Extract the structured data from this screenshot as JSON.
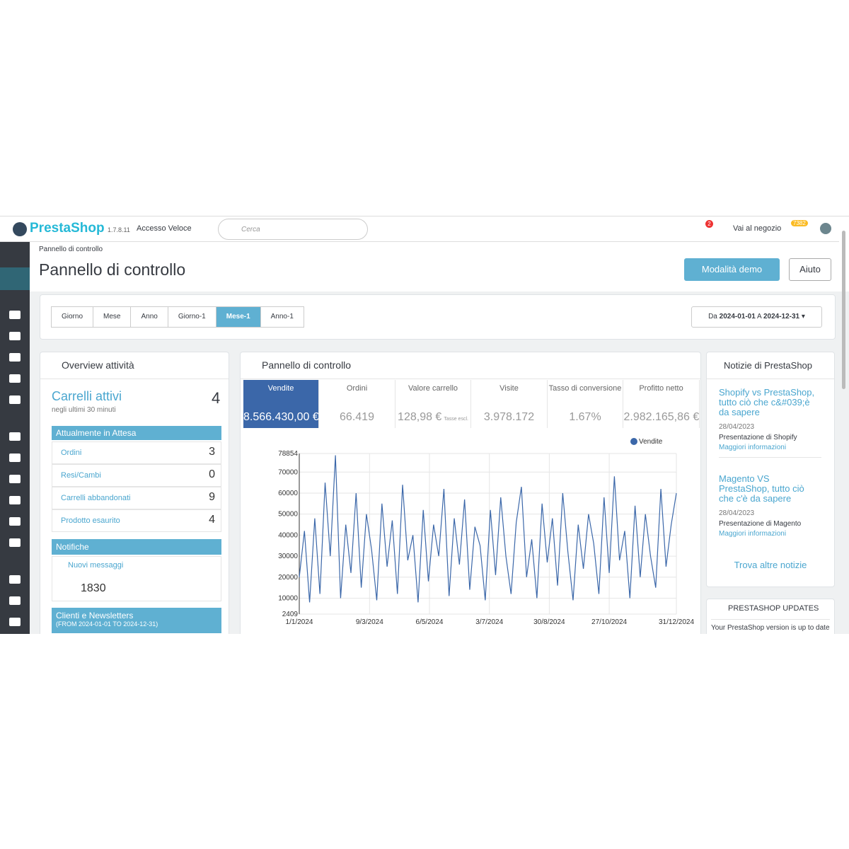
{
  "header": {
    "logo": "PrestaShop",
    "version": "1.7.8.11",
    "quick_access": "Accesso Veloce",
    "search": "Cerca",
    "alerts": "2",
    "shop": "Vai al negozio",
    "notifications": "7382"
  },
  "page": {
    "breadcrumb": "Pannello di controllo",
    "title": "Pannello di controllo",
    "buttons": [
      "Modalità demo",
      "Aiuto"
    ]
  },
  "periods": {
    "items": [
      "Giorno",
      "Mese",
      "Anno",
      "Giorno-1",
      "Mese-1",
      "Anno-1"
    ],
    "active": 4,
    "range": [
      "Da",
      "2024-01-01",
      "A",
      "2024-12-31"
    ]
  },
  "activity": {
    "title": "Overview attività",
    "carts_label": "Carrelli attivi",
    "carts_value": "4",
    "carts_sub": "negli ultimi 30 minuti",
    "pending_title": "Attualmente in Attesa",
    "pending": [
      {
        "label": "Ordini",
        "value": "3"
      },
      {
        "label": "Resi/Cambi",
        "value": "0"
      },
      {
        "label": "Carrelli abbandonati",
        "value": "9"
      },
      {
        "label": "Prodotto esaurito",
        "value": "4"
      }
    ],
    "notifications_title": "Notifiche",
    "messages_label": "Nuovi messaggi",
    "messages_value": "1830",
    "clients_title": "Clienti e Newsletters",
    "clients_sub": "(FROM 2024-01-01 TO 2024-12-31)"
  },
  "dashboard": {
    "title": "Pannello di controllo",
    "kpis": [
      {
        "label": "Vendite",
        "value": "8.566.430,00 €"
      },
      {
        "label": "Ordini",
        "value": "66.419"
      },
      {
        "label": "Valore carrello",
        "value": "128,98 €",
        "note": "Tasse escl."
      },
      {
        "label": "Visite",
        "value": "3.978.172"
      },
      {
        "label": "Tasso di conversione",
        "value": "1.67%"
      },
      {
        "label": "Profitto netto",
        "value": "2.982.165,86 €"
      }
    ],
    "chart": {
      "type": "line",
      "series": [
        {
          "name": "Vendite",
          "color": "#3b67a9",
          "values": [
            20000,
            42000,
            8000,
            48000,
            12000,
            65000,
            30000,
            78000,
            10000,
            45000,
            22000,
            60000,
            15000,
            50000,
            33000,
            9000,
            55000,
            25000,
            47000,
            12000,
            64000,
            28000,
            40000,
            8000,
            52000,
            18000,
            45000,
            30000,
            62000,
            11000,
            48000,
            26000,
            57000,
            14000,
            44000,
            35000,
            9000,
            52000,
            21000,
            58000,
            30000,
            12000,
            46000,
            63000,
            20000,
            38000,
            10000,
            55000,
            27000,
            48000,
            16000,
            60000,
            32000,
            9000,
            45000,
            24000,
            50000,
            36000,
            12000,
            58000,
            22000,
            68000,
            28000,
            42000,
            10000,
            54000,
            20000,
            50000,
            30000,
            15000,
            62000,
            25000,
            45000,
            60000
          ]
        }
      ],
      "x": [
        0,
        5,
        10,
        15,
        20,
        25,
        30,
        35,
        40,
        45,
        50,
        55,
        60,
        65,
        70,
        75,
        80,
        85,
        90,
        95,
        100,
        105,
        110,
        115,
        120,
        125,
        130,
        135,
        140,
        145,
        150,
        155,
        160,
        165,
        170,
        175,
        180,
        185,
        190,
        195,
        200,
        205,
        210,
        215,
        220,
        225,
        230,
        235,
        240,
        245,
        250,
        255,
        260,
        265,
        270,
        275,
        280,
        285,
        290,
        295,
        300,
        305,
        310,
        315,
        320,
        325,
        330,
        335,
        340,
        345,
        350,
        355,
        360,
        365
      ],
      "xlim": [
        0,
        365
      ],
      "xticks": [
        {
          "value": 0,
          "label": "1/1/2024"
        },
        {
          "value": 68,
          "label": "9/3/2024"
        },
        {
          "value": 126,
          "label": "6/5/2024"
        },
        {
          "value": 184,
          "label": "3/7/2024"
        },
        {
          "value": 242,
          "label": "30/8/2024"
        },
        {
          "value": 300,
          "label": "27/10/2024"
        },
        {
          "value": 365,
          "label": "31/12/2024"
        }
      ],
      "ylim": [
        2409,
        78854
      ],
      "yticks": [
        2409,
        10000,
        20000,
        30000,
        40000,
        50000,
        60000,
        70000,
        78854
      ],
      "grid": true
    }
  },
  "news": {
    "title": "Notizie di PrestaShop",
    "items": [
      {
        "title": "Shopify vs PrestaShop, tutto ciò che c&#039;è da sapere",
        "date": "28/04/2023",
        "desc": "Presentazione di Shopify",
        "link": "Maggiori informazioni"
      },
      {
        "title": "Magento VS PrestaShop, tutto ciò che c'è da sapere",
        "date": "28/04/2023",
        "desc": "Presentazione di Magento",
        "link": "Maggiori informazioni"
      }
    ],
    "more": "Trova altre notizie"
  },
  "updates": {
    "title": "PRESTASHOP UPDATES",
    "text": "Your PrestaShop version is up to date"
  }
}
